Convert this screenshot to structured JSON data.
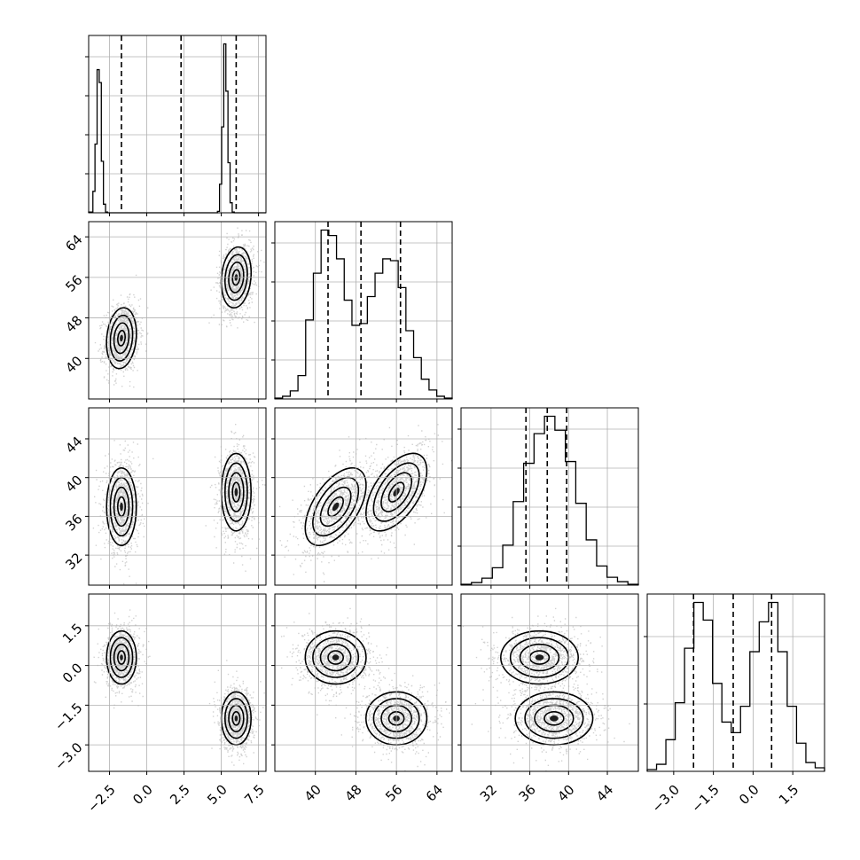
{
  "chart_data": {
    "type": "corner",
    "title": "",
    "params": [
      {
        "name": "",
        "range": [
          -3.9,
          8.0
        ],
        "ticks": [
          -2.5,
          0.0,
          2.5,
          5.0,
          7.5
        ],
        "tick_labels": [
          "−2.5",
          "0.0",
          "2.5",
          "5.0",
          "7.5"
        ],
        "quantiles": [
          -1.7,
          2.3,
          6.0
        ],
        "hist": [
          0.5,
          0.5,
          15,
          48,
          100,
          91,
          36,
          6,
          0.5,
          0,
          0,
          0,
          0,
          0,
          0,
          0,
          0,
          0,
          0,
          0,
          0,
          0,
          0,
          0,
          0,
          0,
          0,
          0,
          0,
          0,
          0,
          0,
          0,
          0,
          0,
          0,
          0,
          0,
          0,
          0,
          0,
          0,
          0,
          0,
          0,
          0,
          0,
          0,
          0,
          0,
          0,
          0,
          0,
          0,
          0,
          0,
          0,
          0,
          0,
          0,
          0,
          1,
          20,
          60,
          118,
          85,
          35,
          7,
          0.5,
          0,
          0,
          0,
          0,
          0,
          0,
          0,
          0,
          0,
          0,
          0,
          0,
          0,
          0,
          0
        ]
      },
      {
        "name": "",
        "range": [
          32.0,
          67.0
        ],
        "ticks": [
          40,
          48,
          56,
          64
        ],
        "tick_labels": [
          "40",
          "48",
          "56",
          "64"
        ],
        "quantiles": [
          42.5,
          49.0,
          56.8
        ],
        "hist": [
          0.5,
          1.5,
          4.5,
          13,
          44,
          70,
          94,
          91,
          78,
          55,
          41,
          42,
          57,
          70,
          78,
          77,
          62,
          38,
          23,
          11,
          5,
          1.5,
          0.5
        ]
      },
      {
        "name": "",
        "range": [
          28.9,
          47.2
        ],
        "ticks": [
          32,
          36,
          40,
          44
        ],
        "tick_labels": [
          "32",
          "36",
          "40",
          "44"
        ],
        "quantiles": [
          35.6,
          37.8,
          39.8
        ],
        "hist": [
          0.5,
          1.5,
          4,
          10,
          23,
          48,
          70,
          87,
          97,
          89,
          71,
          47,
          26,
          11,
          4.5,
          2,
          0.5
        ]
      },
      {
        "name": "",
        "range": [
          -4.0,
          2.7
        ],
        "ticks": [
          -3.0,
          -1.5,
          0.0,
          1.5
        ],
        "tick_labels": [
          "−3.0",
          "−1.5",
          "0.0",
          "1.5"
        ],
        "quantiles": [
          -2.25,
          -0.75,
          0.7
        ],
        "hist": [
          1,
          4,
          18,
          39,
          70,
          96,
          86,
          50,
          28,
          22,
          37,
          68,
          85,
          96,
          68,
          37,
          16,
          5,
          2
        ]
      }
    ],
    "modes": [
      {
        "mean": [
          -1.7,
          44.0,
          37.0,
          0.3
        ],
        "sd": [
          0.5,
          3.0,
          2.0,
          0.5
        ]
      },
      {
        "mean": [
          6.0,
          56.0,
          38.5,
          -2.0
        ],
        "sd": [
          0.5,
          3.0,
          2.0,
          0.5
        ]
      }
    ],
    "axis_labels": {
      "x": "",
      "y": ""
    }
  }
}
